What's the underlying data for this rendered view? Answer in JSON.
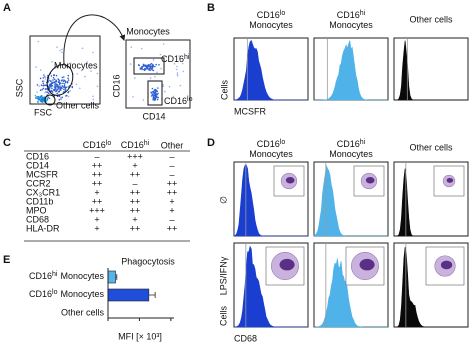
{
  "panel_labels": [
    "A",
    "B",
    "C",
    "D",
    "E"
  ],
  "panel_a": {
    "y_label": "SSC",
    "x_label": "FSC",
    "gate_monocytes": "Monocytes",
    "gate_other": "Other cells",
    "zoom_title": "Monocytes",
    "zoom_y_label": "CD16",
    "zoom_x_label": "CD14",
    "gate_hi": {
      "base": "CD16",
      "sup": "hi"
    },
    "gate_lo": {
      "base": "CD16",
      "sup": "lo"
    }
  },
  "panel_b": {
    "titles": [
      {
        "base": "CD16",
        "sup": "lo",
        "rest": "Monocytes"
      },
      {
        "base": "CD16",
        "sup": "hi",
        "rest": "Monocytes"
      },
      "Other cells"
    ],
    "y_label": "Cells",
    "x_label": "MCSFR"
  },
  "panel_c": {
    "header": [
      {
        "base": "CD16",
        "sup": "lo"
      },
      {
        "base": "CD16",
        "sup": "hi"
      },
      "Other"
    ],
    "rows": [
      [
        "CD16",
        "–",
        "+++",
        "–"
      ],
      [
        "CD14",
        "++",
        "+",
        "–"
      ],
      [
        "MCSFR",
        "++",
        "++",
        "–"
      ],
      [
        "CCR2",
        "++",
        "–",
        "++"
      ],
      [
        "CX₃CR1",
        "+",
        "++",
        "++"
      ],
      [
        "CD11b",
        "++",
        "++",
        "+"
      ],
      [
        "MPO",
        "+++",
        "++",
        "+"
      ],
      [
        "CD68",
        "+",
        "+",
        "–"
      ],
      [
        "HLA-DR",
        "+",
        "++",
        "++"
      ]
    ]
  },
  "panel_d": {
    "titles": [
      {
        "base": "CD16",
        "sup": "lo",
        "rest": "Monocytes"
      },
      {
        "base": "CD16",
        "sup": "hi",
        "rest": "Monocytes"
      },
      "Other cells"
    ],
    "row_labels": [
      "∅",
      "LPS/IFNγ"
    ],
    "y_label": "Cells",
    "x_label": "CD68"
  },
  "chart_data": {
    "type": "bar",
    "orientation": "horizontal",
    "title": "Phagocytosis",
    "categories": [
      {
        "base": "CD16",
        "sup": "hi",
        "rest": "Monocytes"
      },
      {
        "base": "CD16",
        "sup": "lo",
        "rest": "Monocytes"
      },
      "Other cells"
    ],
    "values": [
      0.12,
      0.65,
      0
    ],
    "errors": [
      0.02,
      0.1,
      0
    ],
    "colors": [
      "#56b4e9",
      "#1f4fd8",
      "#1f4fd8"
    ],
    "xlim": [
      0,
      1.05
    ],
    "xticks": [
      0,
      0.5,
      1
    ],
    "x_label": "MFI [× 10³]"
  }
}
